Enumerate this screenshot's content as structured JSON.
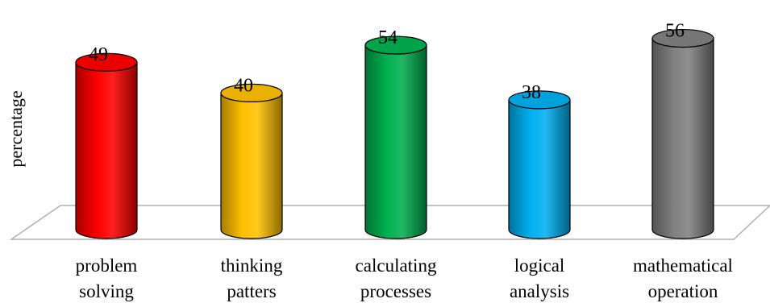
{
  "chart_data": {
    "type": "bar",
    "style": "3d-cylinder",
    "ylabel": "percentage",
    "ylim": [
      0,
      60
    ],
    "grid": false,
    "legend": "none",
    "categories": [
      [
        "problem",
        "solving"
      ],
      [
        "thinking",
        "patters"
      ],
      [
        "calculating",
        "processes"
      ],
      [
        "logical",
        "analysis"
      ],
      [
        "mathematical",
        "operation"
      ]
    ],
    "values": [
      49,
      40,
      54,
      38,
      56
    ],
    "value_labels": [
      "49",
      "40",
      "54",
      "38",
      "56"
    ],
    "colors": [
      "#ff0000",
      "#ffc000",
      "#00b050",
      "#00b0f0",
      "#808080"
    ]
  }
}
